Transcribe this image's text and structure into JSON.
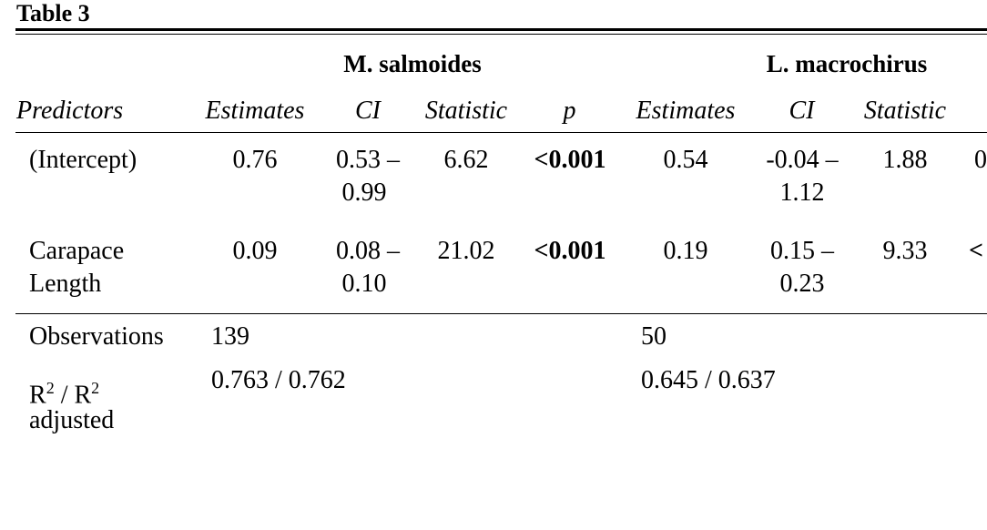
{
  "table": {
    "title": "Table 3",
    "groups": [
      "M. salmoides",
      "L. macrochirus"
    ],
    "headers": {
      "predictors": "Predictors",
      "g1": {
        "estimates": "Estimates",
        "ci": "CI",
        "statistic": "Statistic",
        "p": "p"
      },
      "g2": {
        "estimates": "Estimates",
        "ci": "CI",
        "statistic": "Statistic"
      }
    },
    "rows": [
      {
        "predictor_lines": [
          "(Intercept)"
        ],
        "g1": {
          "estimate": "0.76",
          "ci_line1": "0.53 –",
          "ci_line2": "0.99",
          "statistic": "6.62",
          "p": "<0.001"
        },
        "g2": {
          "estimate": "0.54",
          "ci_line1": "-0.04 –",
          "ci_line2": "1.12",
          "statistic": "1.88",
          "p_partial": "0"
        }
      },
      {
        "predictor_lines": [
          "Carapace",
          "Length"
        ],
        "g1": {
          "estimate": "0.09",
          "ci_line1": "0.08 –",
          "ci_line2": "0.10",
          "statistic": "21.02",
          "p": "<0.001"
        },
        "g2": {
          "estimate": "0.19",
          "ci_line1": "0.15 –",
          "ci_line2": "0.23",
          "statistic": "9.33",
          "p_partial": "<"
        }
      }
    ],
    "footer": {
      "observations_label": "Observations",
      "observations_g1": "139",
      "observations_g2": "50",
      "r2_label_r": "R",
      "r2_sup": "2",
      "r2_sep": " / R",
      "r2_label_line2": "adjusted",
      "r2_g1": "0.763 / 0.762",
      "r2_g2": "0.645 / 0.637"
    }
  }
}
